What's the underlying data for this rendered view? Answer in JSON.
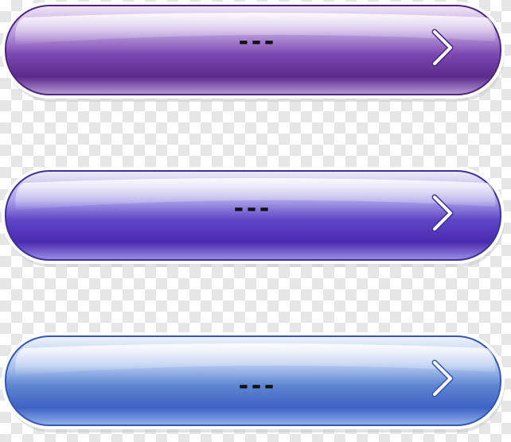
{
  "buttons": [
    {
      "label": "---",
      "icon": "chevron-right-icon",
      "colors": {
        "top": "#e6d6f0",
        "mid": "#8f62bf",
        "bottom": "#5a2a8c",
        "edge": "#4e2682",
        "lower": "#b89ad6"
      }
    },
    {
      "label": "---",
      "icon": "chevron-right-icon",
      "colors": {
        "top": "#e1dcf5",
        "mid": "#6b56cf",
        "bottom": "#4a2bb0",
        "edge": "#40309a",
        "lower": "#9d8fe6"
      }
    },
    {
      "label": "---",
      "icon": "chevron-right-icon",
      "colors": {
        "top": "#d8e4f8",
        "mid": "#6b8fd9",
        "bottom": "#3d62c4",
        "edge": "#3558b4",
        "lower": "#93b2ec"
      }
    }
  ]
}
